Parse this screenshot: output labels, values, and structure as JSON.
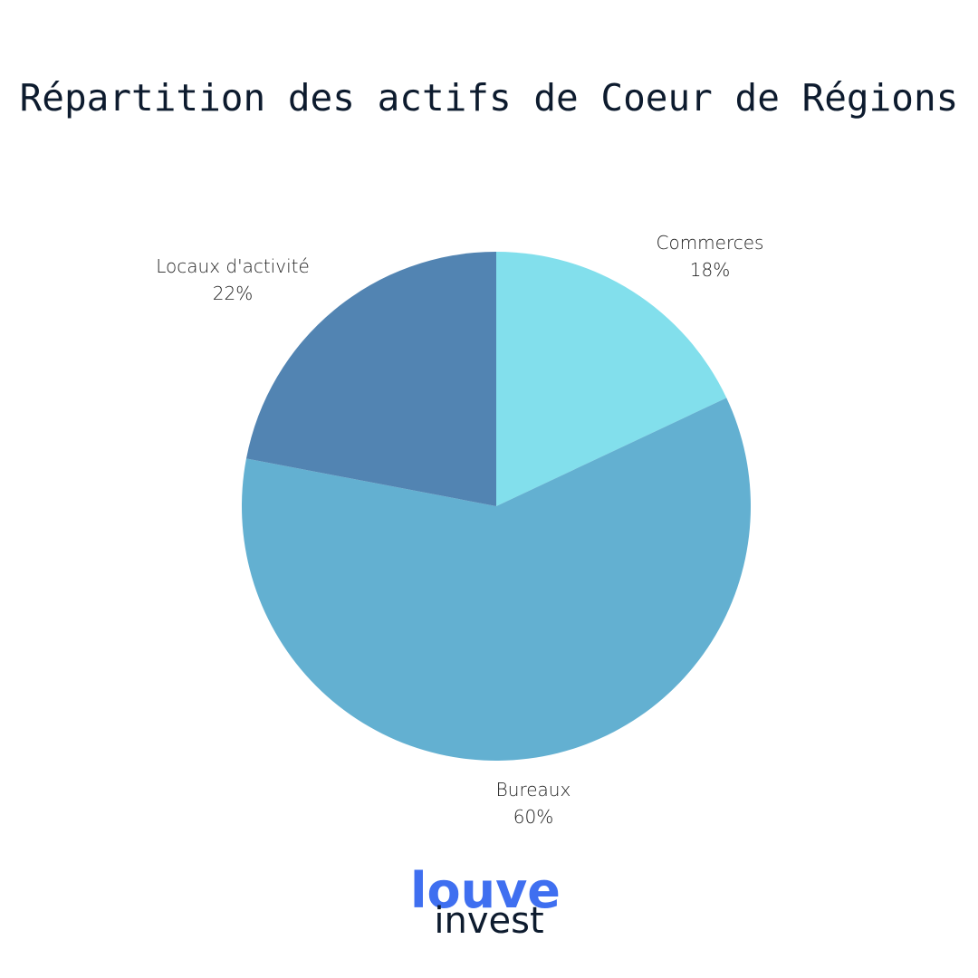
{
  "chart_data": {
    "type": "pie",
    "title": "Répartition des actifs de Coeur de Régions",
    "categories": [
      "Commerces",
      "Bureaux",
      "Locaux d'activité"
    ],
    "values": [
      18,
      60,
      22
    ],
    "value_labels": [
      "18%",
      "60%",
      "22%"
    ],
    "colors": [
      "#82dfec",
      "#63b0d1",
      "#5284b2"
    ]
  },
  "logo": [
    "louve",
    "invest"
  ]
}
